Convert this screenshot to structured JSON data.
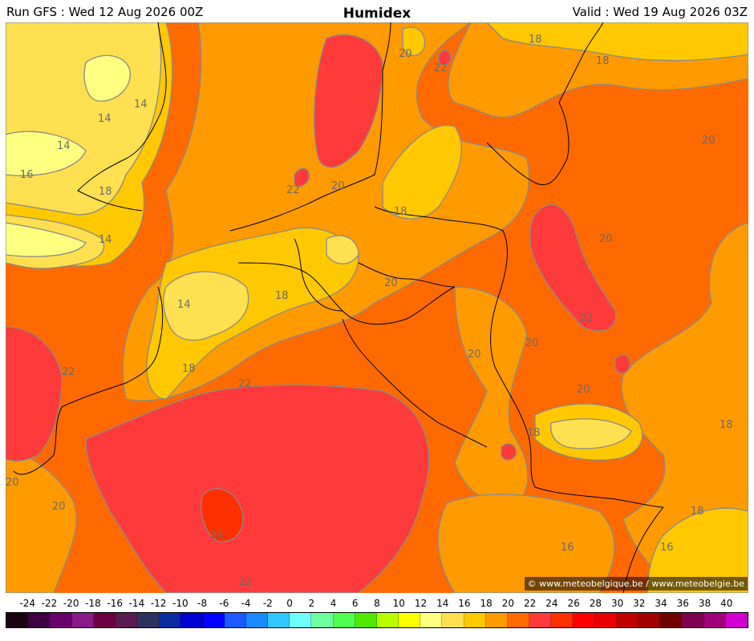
{
  "header": {
    "run": "Run GFS : Wed 12 Aug 2026 00Z",
    "title": "Humidex",
    "valid": "Valid : Wed 19 Aug 2026 03Z"
  },
  "copyright": "© www.meteobelgique.be / www.meteobelgie.be",
  "contour_labels": [
    "14",
    "14",
    "14",
    "16",
    "18",
    "14",
    "14",
    "18",
    "22",
    "20",
    "18",
    "22",
    "20",
    "20",
    "18",
    "20",
    "22",
    "20",
    "18",
    "20",
    "18",
    "22",
    "20",
    "22",
    "20",
    "20",
    "24",
    "22",
    "18",
    "16",
    "18",
    "16",
    "18",
    "20"
  ],
  "legend": {
    "ticks": [
      "-24",
      "-22",
      "-20",
      "-18",
      "-16",
      "-14",
      "-12",
      "-10",
      "-8",
      "-6",
      "-4",
      "-2",
      "0",
      "2",
      "4",
      "6",
      "8",
      "10",
      "12",
      "14",
      "16",
      "18",
      "20",
      "22",
      "24",
      "26",
      "28",
      "30",
      "32",
      "34",
      "36",
      "38",
      "40"
    ],
    "colors": [
      "#1a0010",
      "#3d0040",
      "#6a006a",
      "#8a1a8a",
      "#6a0040",
      "#5a1a50",
      "#303060",
      "#0a2aa0",
      "#0000d0",
      "#0000ff",
      "#1a5aff",
      "#1a8aff",
      "#30c8ff",
      "#70ffff",
      "#70ffa0",
      "#50ff50",
      "#50e800",
      "#b8ff00",
      "#ffff00",
      "#ffff80",
      "#ffe050",
      "#ffc800",
      "#ff9a00",
      "#ff6a00",
      "#ff3a3a",
      "#ff3000",
      "#ff0000",
      "#e80000",
      "#c00000",
      "#a00000",
      "#700000",
      "#800050",
      "#a0007a",
      "#d000d0"
    ]
  },
  "colors": {
    "h12": "#ffff80",
    "h14": "#ffe050",
    "h16": "#ffc800",
    "h18": "#ff9a00",
    "h20": "#ff6a00",
    "h22": "#ff3a3a",
    "h24": "#ff3000",
    "contour": "#8a8a8a",
    "border": "#000000"
  }
}
